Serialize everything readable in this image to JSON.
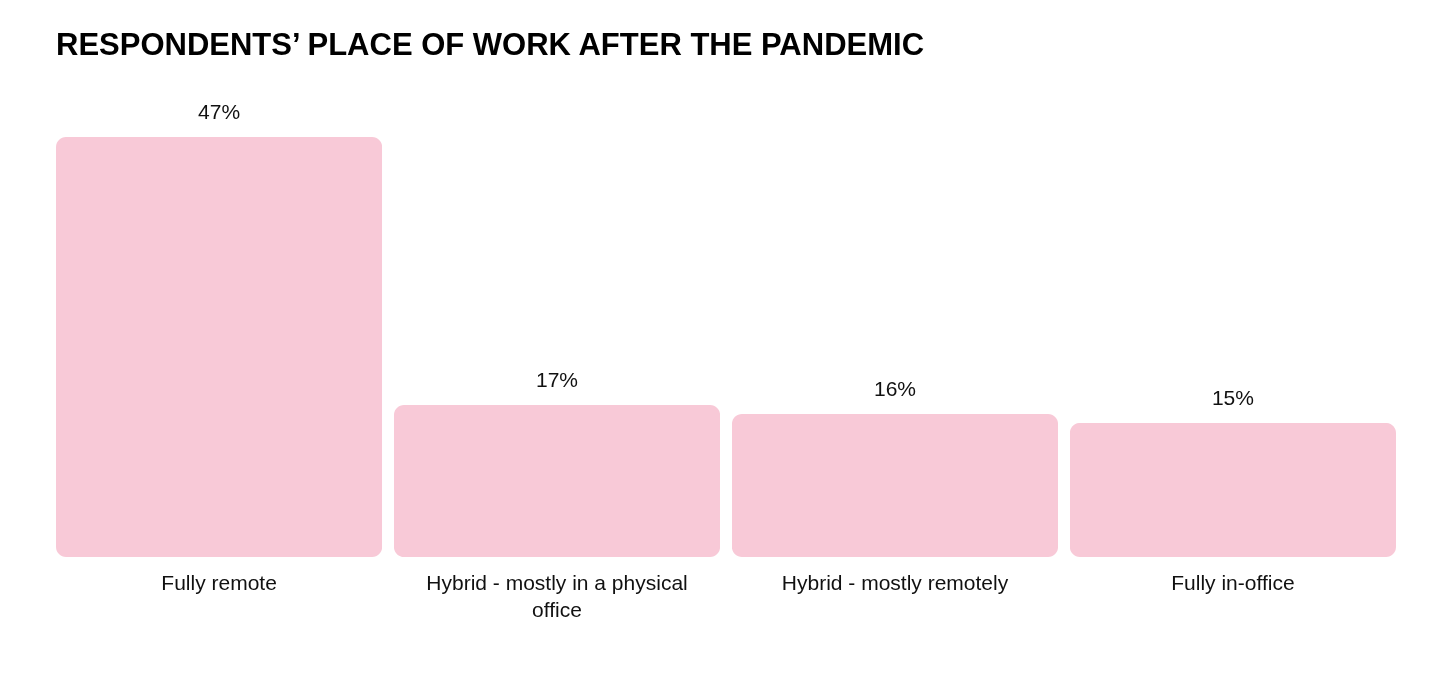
{
  "chart_data": {
    "type": "bar",
    "title": "RESPONDENTS’ PLACE OF WORK AFTER THE PANDEMIC",
    "categories": [
      "Fully remote",
      "Hybrid - mostly in a physical office",
      "Hybrid - mostly remotely",
      "Fully in-office"
    ],
    "values": [
      47,
      17,
      16,
      15
    ],
    "value_labels": [
      "47%",
      "17%",
      "16%",
      "15%"
    ],
    "color": "#f8c9d7",
    "grid": false
  }
}
